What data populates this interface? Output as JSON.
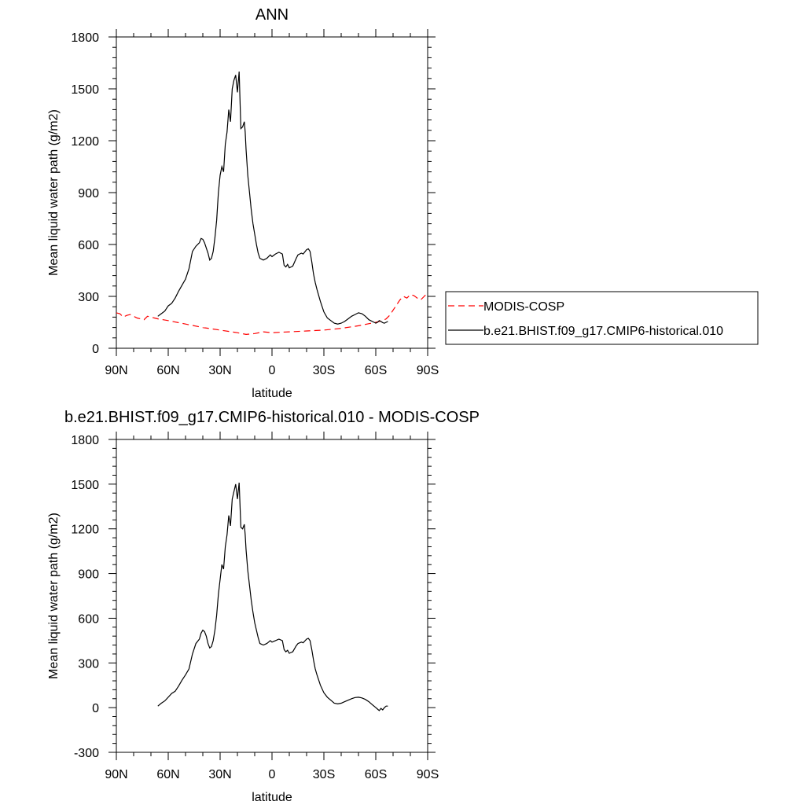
{
  "chart_data": [
    {
      "type": "line",
      "title": "ANN",
      "xlabel": "latitude",
      "ylabel": "Mean liquid water path (g/m2)",
      "xlim": [
        90,
        -90
      ],
      "ylim": [
        0,
        1800
      ],
      "x_ticks": [
        90,
        60,
        30,
        0,
        -30,
        -60,
        -90
      ],
      "x_tick_labels": [
        "90N",
        "60N",
        "30N",
        "0",
        "30S",
        "60S",
        "90S"
      ],
      "y_ticks": [
        0,
        300,
        600,
        900,
        1200,
        1500,
        1800
      ],
      "y_tick_labels": [
        "0",
        "300",
        "600",
        "900",
        "1200",
        "1500",
        "1800"
      ],
      "legend": {
        "placement": "right",
        "entries": [
          "MODIS-COSP",
          "b.e21.BHIST.f09_g17.CMIP6-historical.010"
        ]
      },
      "series": [
        {
          "name": "MODIS-COSP",
          "color": "#ff0000",
          "dash": "dashed",
          "x": [
            90,
            88,
            86,
            84,
            82,
            80,
            78,
            76,
            74,
            72,
            70,
            68,
            66,
            60,
            50,
            40,
            30,
            20,
            15,
            10,
            5,
            0,
            -10,
            -20,
            -30,
            -40,
            -50,
            -55,
            -60,
            -62,
            -64,
            -66,
            -68,
            -70,
            -72,
            -74,
            -76,
            -78,
            -80,
            -82,
            -84,
            -86,
            -88,
            -90
          ],
          "y": [
            205,
            200,
            180,
            190,
            195,
            185,
            175,
            170,
            165,
            185,
            180,
            175,
            170,
            160,
            140,
            120,
            105,
            90,
            80,
            85,
            95,
            90,
            95,
            100,
            105,
            115,
            130,
            140,
            150,
            155,
            160,
            170,
            190,
            220,
            250,
            280,
            300,
            290,
            310,
            305,
            290,
            280,
            300,
            320
          ]
        },
        {
          "name": "b.e21.BHIST.f09_g17.CMIP6-historical.010",
          "color": "#000000",
          "dash": "solid",
          "x": [
            66,
            64,
            62,
            60,
            58,
            56,
            54,
            52,
            50,
            48,
            46,
            44,
            42,
            41,
            40,
            39,
            38,
            37,
            36,
            35,
            34,
            33,
            32,
            31,
            30,
            29,
            28,
            27,
            26,
            25,
            24,
            23,
            22,
            21,
            20,
            19,
            18,
            17,
            16,
            15.5,
            15,
            14,
            13,
            12,
            11,
            10,
            9,
            8,
            7,
            6,
            5,
            4,
            3,
            2,
            1,
            0,
            -2,
            -4,
            -6,
            -7,
            -8,
            -9,
            -10,
            -11,
            -12,
            -14,
            -15,
            -16,
            -17,
            -18,
            -20,
            -21,
            -22,
            -23,
            -24,
            -25,
            -26,
            -28,
            -30,
            -32,
            -34,
            -36,
            -38,
            -40,
            -42,
            -44,
            -46,
            -48,
            -50,
            -52,
            -54,
            -56,
            -58,
            -60,
            -61,
            -62,
            -63,
            -64,
            -65,
            -66,
            -67
          ],
          "y": [
            185,
            200,
            215,
            245,
            260,
            290,
            330,
            365,
            400,
            460,
            560,
            590,
            610,
            635,
            630,
            610,
            580,
            550,
            510,
            520,
            560,
            640,
            740,
            900,
            1000,
            1050,
            1020,
            1180,
            1250,
            1380,
            1310,
            1500,
            1550,
            1580,
            1480,
            1600,
            1270,
            1280,
            1310,
            1250,
            1150,
            1000,
            900,
            800,
            720,
            660,
            600,
            550,
            520,
            515,
            510,
            515,
            520,
            530,
            540,
            530,
            545,
            555,
            545,
            480,
            470,
            485,
            465,
            470,
            475,
            520,
            540,
            545,
            550,
            545,
            570,
            575,
            560,
            500,
            430,
            380,
            340,
            270,
            210,
            175,
            160,
            145,
            140,
            145,
            155,
            170,
            185,
            195,
            205,
            200,
            185,
            165,
            155,
            145,
            150,
            160,
            155,
            148,
            145,
            150,
            155
          ]
        }
      ]
    },
    {
      "type": "line",
      "title": "b.e21.BHIST.f09_g17.CMIP6-historical.010 - MODIS-COSP",
      "xlabel": "latitude",
      "ylabel": "Mean liquid water path (g/m2)",
      "xlim": [
        90,
        -90
      ],
      "ylim": [
        -300,
        1800
      ],
      "x_ticks": [
        90,
        60,
        30,
        0,
        -30,
        -60,
        -90
      ],
      "x_tick_labels": [
        "90N",
        "60N",
        "30N",
        "0",
        "30S",
        "60S",
        "90S"
      ],
      "y_ticks": [
        -300,
        0,
        300,
        600,
        900,
        1200,
        1500,
        1800
      ],
      "y_tick_labels": [
        "-300",
        "0",
        "300",
        "600",
        "900",
        "1200",
        "1500",
        "1800"
      ],
      "series": [
        {
          "color": "#000000",
          "dash": "solid",
          "x": [
            66,
            64,
            62,
            60,
            58,
            56,
            54,
            52,
            50,
            48,
            46,
            44,
            42,
            41,
            40,
            39,
            38,
            37,
            36,
            35,
            34,
            33,
            32,
            31,
            30,
            29,
            28,
            27,
            26,
            25,
            24,
            23,
            22,
            21,
            20,
            19,
            18,
            17,
            16,
            15.5,
            15,
            14,
            13,
            12,
            11,
            10,
            9,
            8,
            7,
            6,
            5,
            4,
            3,
            2,
            1,
            0,
            -2,
            -4,
            -6,
            -7,
            -8,
            -9,
            -10,
            -11,
            -12,
            -14,
            -15,
            -16,
            -17,
            -18,
            -20,
            -21,
            -22,
            -23,
            -24,
            -25,
            -26,
            -28,
            -30,
            -32,
            -34,
            -36,
            -38,
            -40,
            -42,
            -44,
            -46,
            -48,
            -50,
            -52,
            -54,
            -56,
            -58,
            -60,
            -61,
            -62,
            -63,
            -64,
            -65,
            -66,
            -67
          ],
          "y": [
            10,
            30,
            45,
            70,
            95,
            110,
            145,
            185,
            220,
            260,
            360,
            430,
            460,
            500,
            520,
            510,
            480,
            430,
            400,
            410,
            450,
            520,
            620,
            760,
            860,
            960,
            930,
            1080,
            1160,
            1290,
            1220,
            1400,
            1450,
            1500,
            1400,
            1510,
            1210,
            1200,
            1230,
            1160,
            1060,
            920,
            820,
            720,
            640,
            570,
            520,
            470,
            430,
            425,
            420,
            425,
            430,
            440,
            450,
            440,
            450,
            460,
            450,
            390,
            375,
            385,
            365,
            370,
            375,
            415,
            430,
            435,
            440,
            435,
            460,
            465,
            450,
            390,
            320,
            260,
            220,
            150,
            100,
            70,
            50,
            30,
            25,
            30,
            40,
            50,
            60,
            68,
            70,
            65,
            55,
            40,
            20,
            0,
            -10,
            -20,
            -5,
            -15,
            0,
            10,
            10
          ]
        }
      ]
    }
  ]
}
